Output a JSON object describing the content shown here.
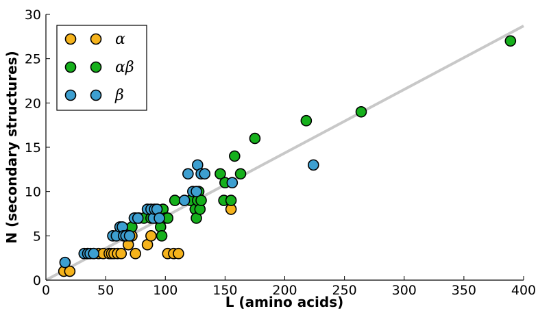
{
  "chart_data": {
    "type": "scatter",
    "xlabel": "L (amino acids)",
    "ylabel": "N (secondary structures)",
    "xlim": [
      0,
      400
    ],
    "ylim": [
      0,
      30
    ],
    "x_ticks": [
      "0",
      "50",
      "100",
      "150",
      "200",
      "250",
      "300",
      "350",
      "400"
    ],
    "y_ticks": [
      "0",
      "5",
      "10",
      "15",
      "20",
      "25",
      "30"
    ],
    "grid": false,
    "legend_position": "top-left",
    "trend_line": {
      "x": [
        0,
        400
      ],
      "y": [
        0,
        28.7
      ],
      "color": "#c8c8c8"
    },
    "series": [
      {
        "name": "α",
        "color": "#f5b31c",
        "points": [
          [
            15,
            1
          ],
          [
            20,
            1
          ],
          [
            35,
            3
          ],
          [
            40,
            3
          ],
          [
            44,
            3
          ],
          [
            48,
            3
          ],
          [
            53,
            3
          ],
          [
            55,
            3
          ],
          [
            57,
            3
          ],
          [
            60,
            3
          ],
          [
            63,
            3
          ],
          [
            69,
            4
          ],
          [
            72,
            5
          ],
          [
            75,
            3
          ],
          [
            85,
            4
          ],
          [
            88,
            5
          ],
          [
            102,
            3
          ],
          [
            107,
            3
          ],
          [
            111,
            3
          ],
          [
            155,
            8
          ]
        ]
      },
      {
        "name": "αβ",
        "color": "#16b01c",
        "points": [
          [
            72,
            6
          ],
          [
            75,
            7
          ],
          [
            78,
            7
          ],
          [
            82,
            7
          ],
          [
            88,
            7
          ],
          [
            92,
            7
          ],
          [
            96,
            6
          ],
          [
            97,
            5
          ],
          [
            98,
            8
          ],
          [
            100,
            7
          ],
          [
            102,
            7
          ],
          [
            108,
            9
          ],
          [
            121,
            9
          ],
          [
            125,
            8
          ],
          [
            126,
            7
          ],
          [
            127,
            9
          ],
          [
            128,
            10
          ],
          [
            129,
            8
          ],
          [
            130,
            9
          ],
          [
            146,
            12
          ],
          [
            149,
            9
          ],
          [
            150,
            11
          ],
          [
            155,
            9
          ],
          [
            158,
            14
          ],
          [
            163,
            12
          ],
          [
            175,
            16
          ],
          [
            218,
            18
          ],
          [
            264,
            19
          ],
          [
            389,
            27
          ]
        ]
      },
      {
        "name": "β",
        "color": "#3d9fd0",
        "points": [
          [
            16,
            2
          ],
          [
            32,
            3
          ],
          [
            35,
            3
          ],
          [
            37,
            3
          ],
          [
            40,
            3
          ],
          [
            56,
            5
          ],
          [
            59,
            5
          ],
          [
            62,
            6
          ],
          [
            64,
            6
          ],
          [
            65,
            5
          ],
          [
            67,
            5
          ],
          [
            70,
            5
          ],
          [
            74,
            7
          ],
          [
            77,
            7
          ],
          [
            85,
            8
          ],
          [
            88,
            8
          ],
          [
            90,
            7
          ],
          [
            91,
            8
          ],
          [
            93,
            8
          ],
          [
            95,
            7
          ],
          [
            116,
            9
          ],
          [
            119,
            12
          ],
          [
            123,
            10
          ],
          [
            126,
            10
          ],
          [
            127,
            13
          ],
          [
            130,
            12
          ],
          [
            133,
            12
          ],
          [
            156,
            11
          ],
          [
            224,
            13
          ]
        ]
      }
    ]
  }
}
